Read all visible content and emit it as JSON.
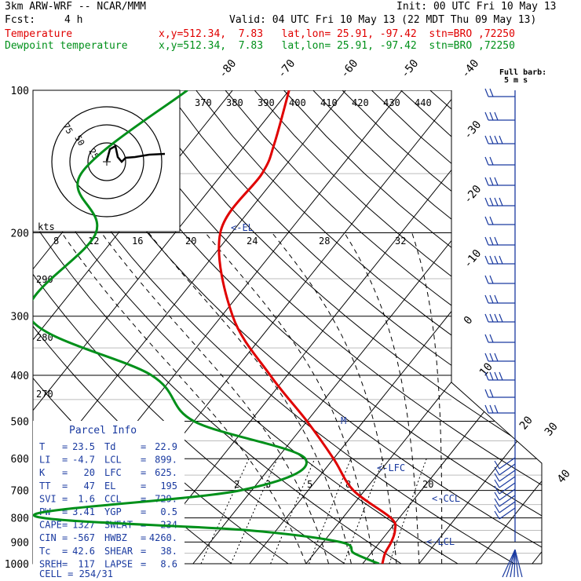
{
  "header": {
    "model": "3km ARW-WRF -- NCAR/MMM",
    "init": "Init: 00 UTC Fri 10 May 13",
    "fcst_label": "Fcst:",
    "fcst_value": "4 h",
    "valid": "Valid: 04 UTC Fri 10 May 13 (22 MDT Thu 09 May 13)",
    "temp_label": "Temperature",
    "temp_info": "x,y=512.34,  7.83   lat,lon= 25.91, -97.42  stn=BRO ,72250",
    "dew_label": "Dewpoint temperature",
    "dew_info": "x,y=512.34,  7.83   lat,lon= 25.91, -97.42  stn=BRO ,72250"
  },
  "colors": {
    "temperature": "#e00000",
    "dewpoint": "#00901a",
    "parcel_title": "#1a3aa0"
  },
  "chart_data": {
    "type": "line",
    "title": "",
    "y_axis": "pressure (hPa), log scale",
    "pressure_ticks": [
      100,
      200,
      300,
      400,
      500,
      600,
      700,
      800,
      900,
      1000
    ],
    "isotherm_labels": [
      "-80",
      "-70",
      "-60",
      "-50",
      "-40",
      "-30",
      "-20",
      "-10",
      "0",
      "10",
      "20",
      "30",
      "40"
    ],
    "theta_labels": [
      "370",
      "380",
      "390",
      "400",
      "410",
      "420",
      "430",
      "440"
    ],
    "theta_e_labels": [
      "290",
      "280",
      "270"
    ],
    "mixing_ratio_labels": [
      "2",
      "3",
      "5",
      "8",
      "20"
    ],
    "markers": [
      "<-EL",
      "<-LFC",
      "<-CCL",
      "<-LCL",
      "M"
    ],
    "series": [
      {
        "name": "Temperature",
        "points": [
          [
            100,
            -60
          ],
          [
            130,
            -55
          ],
          [
            150,
            -53
          ],
          [
            200,
            -52
          ],
          [
            300,
            -38
          ],
          [
            400,
            -23
          ],
          [
            500,
            -10
          ],
          [
            600,
            0
          ],
          [
            700,
            8
          ],
          [
            800,
            18.5
          ],
          [
            850,
            21
          ],
          [
            900,
            22
          ],
          [
            950,
            22.5
          ],
          [
            1000,
            23.5
          ]
        ]
      },
      {
        "name": "Dewpoint temperature",
        "points": [
          [
            100,
            -78
          ],
          [
            150,
            -85
          ],
          [
            200,
            -74
          ],
          [
            300,
            -74
          ],
          [
            400,
            -44
          ],
          [
            500,
            -30
          ],
          [
            600,
            -5
          ],
          [
            700,
            -12
          ],
          [
            790,
            -45
          ],
          [
            850,
            -5
          ],
          [
            900,
            13
          ],
          [
            950,
            17
          ],
          [
            1000,
            22.9
          ]
        ]
      }
    ],
    "wind_barb_title": "Full barb:",
    "wind_barb_unit": "5 m s",
    "hodograph": {
      "units": "kts",
      "rings": [
        "75",
        "50",
        "25"
      ],
      "x_labels": [
        "8",
        "12",
        "16",
        "20",
        "24",
        "28",
        "32"
      ]
    }
  },
  "parcel_info": {
    "title": "Parcel Info",
    "rows": [
      {
        "a": "T",
        "av": "23.5",
        "b": "Td",
        "bv": "22.9"
      },
      {
        "a": "LI",
        "av": "-4.7",
        "b": "LCL",
        "bv": "899."
      },
      {
        "a": "K",
        "av": "20",
        "b": "LFC",
        "bv": "625."
      },
      {
        "a": "TT",
        "av": "47",
        "b": "EL",
        "bv": "195"
      },
      {
        "a": "SVI",
        "av": "1.6",
        "b": "CCL",
        "bv": "729."
      },
      {
        "a": "PW",
        "av": "3.41",
        "b": "YGP",
        "bv": "0.5"
      },
      {
        "a": "CAPE",
        "av": "1327",
        "b": "SWEAT",
        "bv": "234"
      },
      {
        "a": "CIN",
        "av": "-567",
        "b": "HWBZ",
        "bv": "4260."
      },
      {
        "a": "Tc",
        "av": "42.6",
        "b": "SHEAR",
        "bv": "38."
      },
      {
        "a": "SREH",
        "av": "117",
        "b": "LAPSE",
        "bv": "8.6"
      }
    ],
    "cell": "CELL = 254/31"
  }
}
